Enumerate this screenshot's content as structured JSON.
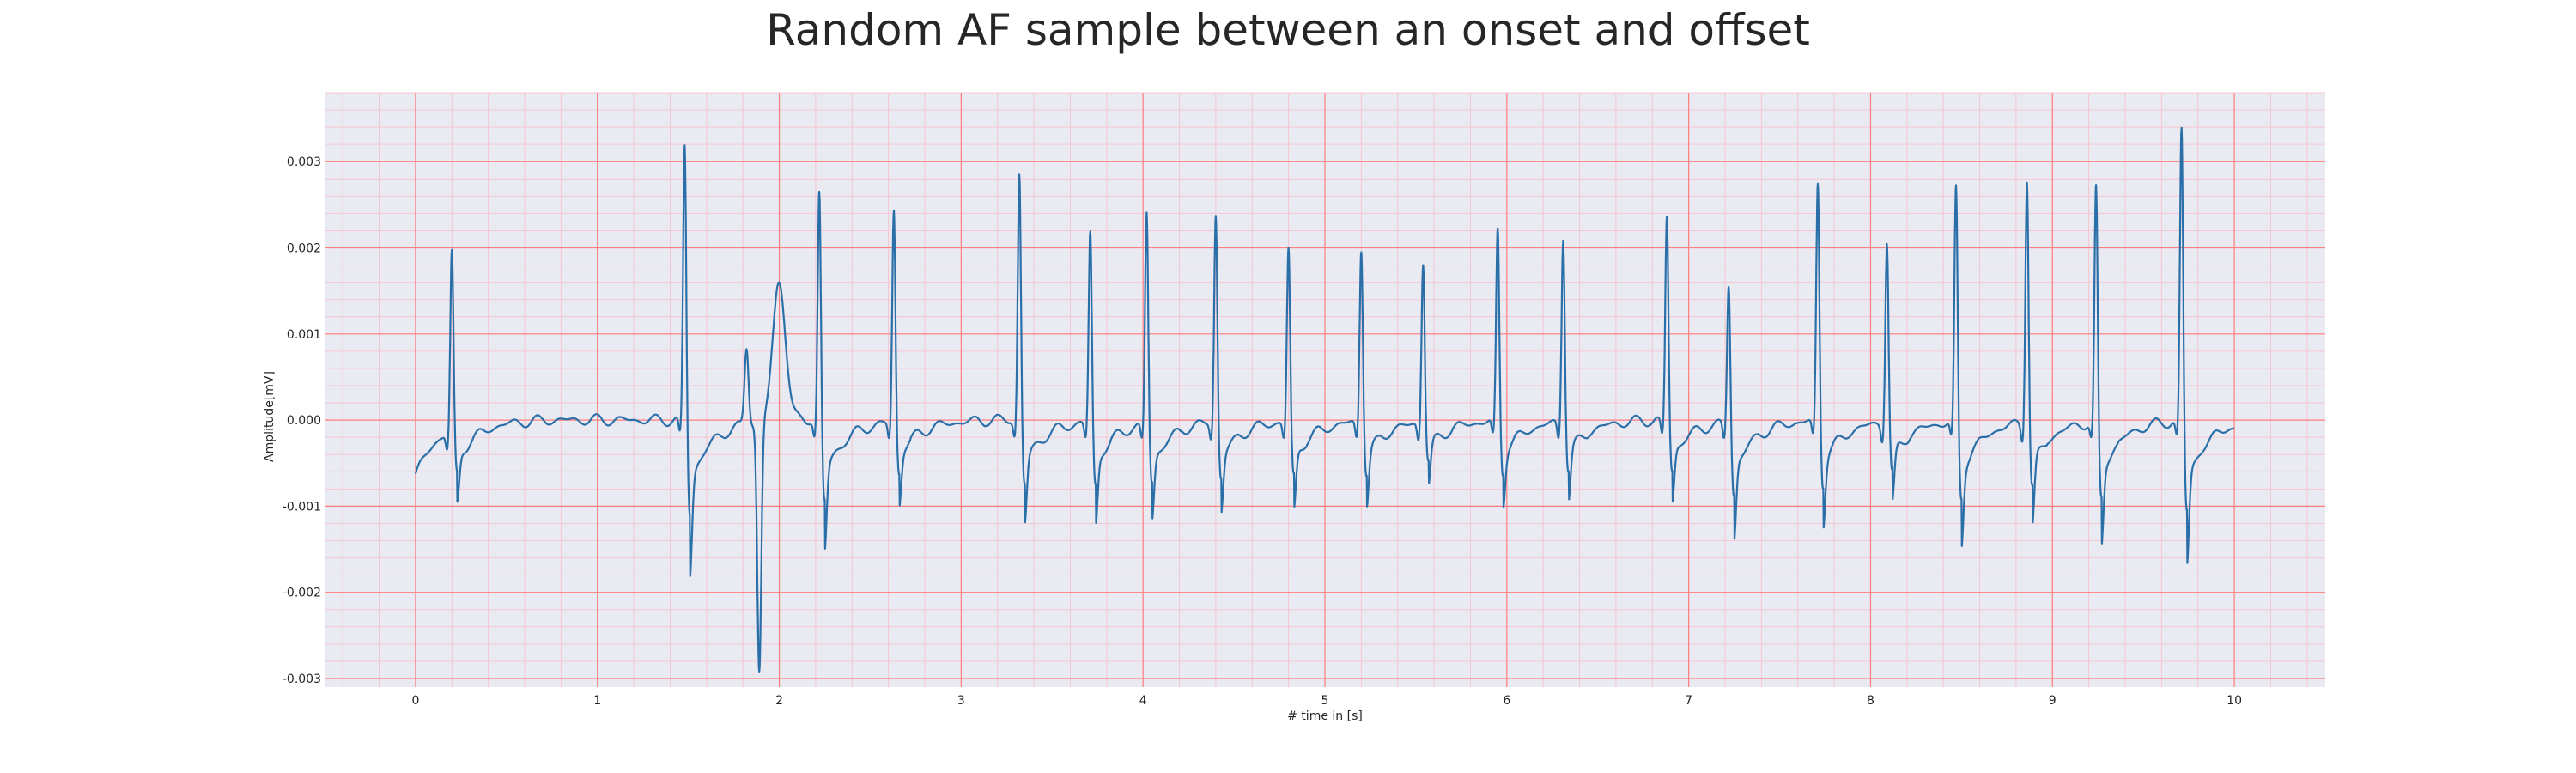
{
  "chart_data": {
    "type": "line",
    "title": "Random AF sample between an onset and offset",
    "xlabel": "# time in [s]",
    "ylabel": "Amplitude[mV]",
    "xlim": [
      -0.5,
      10.5
    ],
    "ylim": [
      -0.0031,
      0.0038
    ],
    "x_ticks": [
      0,
      1,
      2,
      3,
      4,
      5,
      6,
      7,
      8,
      9,
      10
    ],
    "x_tick_labels": [
      "0",
      "1",
      "2",
      "3",
      "4",
      "5",
      "6",
      "7",
      "8",
      "9",
      "10"
    ],
    "y_ticks": [
      -0.003,
      -0.002,
      -0.001,
      0.0,
      0.001,
      0.002,
      0.003
    ],
    "y_tick_labels": [
      "-0.003",
      "-0.002",
      "-0.001",
      "0.000",
      "0.001",
      "0.002",
      "0.003"
    ],
    "grid": true,
    "minor_grid": true,
    "colors": {
      "line": "#2a6fa8",
      "plot_background": "#eaeaf2",
      "major_grid": "#ff7f7f",
      "minor_grid": "#f5c6d0"
    },
    "beats": [
      {
        "t": 0.2,
        "peak": 0.0021,
        "s": -0.00055
      },
      {
        "t": 1.48,
        "peak": 0.00325,
        "s": -0.0011
      },
      {
        "t": 2.22,
        "peak": 0.0027,
        "s": -0.00095
      },
      {
        "t": 2.63,
        "peak": 0.0025,
        "s": -0.0006
      },
      {
        "t": 3.32,
        "peak": 0.0029,
        "s": -0.00075
      },
      {
        "t": 3.71,
        "peak": 0.00225,
        "s": -0.00075
      },
      {
        "t": 4.02,
        "peak": 0.0025,
        "s": -0.0007
      },
      {
        "t": 4.4,
        "peak": 0.00245,
        "s": -0.00065
      },
      {
        "t": 4.8,
        "peak": 0.00205,
        "s": -0.00065
      },
      {
        "t": 5.2,
        "peak": 0.00205,
        "s": -0.0006
      },
      {
        "t": 5.54,
        "peak": 0.0019,
        "s": -0.00045
      },
      {
        "t": 5.95,
        "peak": 0.00225,
        "s": -0.0006
      },
      {
        "t": 6.31,
        "peak": 0.0022,
        "s": -0.00055
      },
      {
        "t": 6.88,
        "peak": 0.0024,
        "s": -0.0006
      },
      {
        "t": 7.22,
        "peak": 0.00165,
        "s": -0.00085
      },
      {
        "t": 7.71,
        "peak": 0.0028,
        "s": -0.00075
      },
      {
        "t": 8.09,
        "peak": 0.00215,
        "s": -0.0006
      },
      {
        "t": 8.47,
        "peak": 0.00275,
        "s": -0.0009
      },
      {
        "t": 8.86,
        "peak": 0.0029,
        "s": -0.00075
      },
      {
        "t": 9.24,
        "peak": 0.00275,
        "s": -0.0009
      },
      {
        "t": 9.71,
        "peak": 0.00345,
        "s": -0.00105
      }
    ],
    "ectopic_event": [
      {
        "t": 1.82,
        "v": 0.0009
      },
      {
        "t": 1.89,
        "v": -0.0029
      },
      {
        "t": 2.0,
        "v": 0.0016
      }
    ],
    "start_value": -0.00065,
    "end_value": -0.0001
  }
}
